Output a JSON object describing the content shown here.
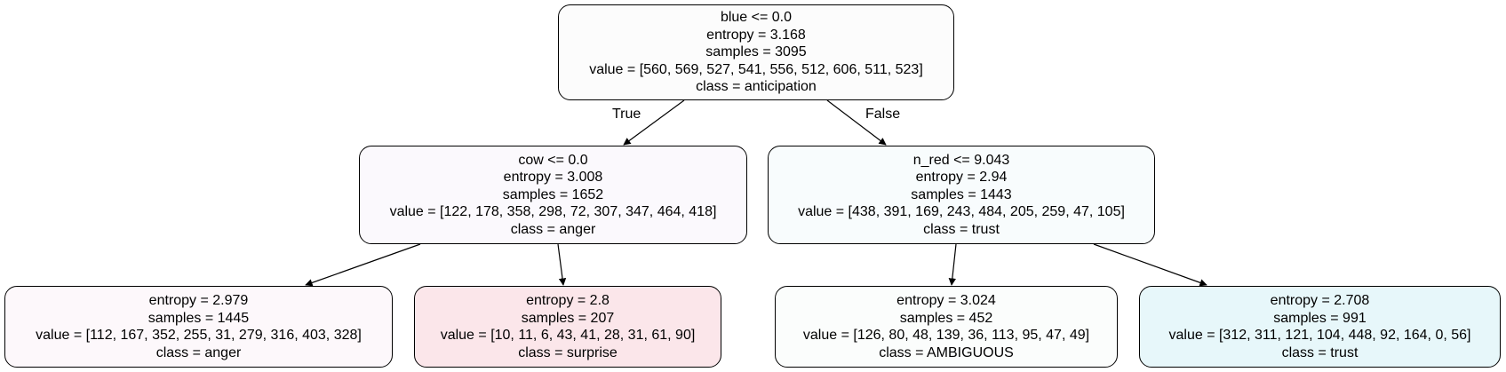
{
  "tree": {
    "root": {
      "lines": [
        "blue <= 0.0",
        "entropy = 3.168",
        "samples = 3095",
        "value = [560, 569, 527, 541, 556, 512, 606, 511, 523]",
        "class = anticipation"
      ],
      "fill": "#fcfcfc"
    },
    "left": {
      "lines": [
        "cow <= 0.0",
        "entropy = 3.008",
        "samples = 1652",
        "value = [122, 178, 358, 298, 72, 307, 347, 464, 418]",
        "class = anger"
      ],
      "fill": "#fbf9fd"
    },
    "right": {
      "lines": [
        "n_red <= 9.043",
        "entropy = 2.94",
        "samples = 1443",
        "value = [438, 391, 169, 243, 484, 205, 259, 47, 105]",
        "class = trust"
      ],
      "fill": "#f8fcfd"
    },
    "leaf_ll": {
      "lines": [
        "entropy = 2.979",
        "samples = 1445",
        "value = [112, 167, 352, 255, 31, 279, 316, 403, 328]",
        "class = anger"
      ],
      "fill": "#fdf8fb"
    },
    "leaf_lr": {
      "lines": [
        "entropy = 2.8",
        "samples = 207",
        "value = [10, 11, 6, 43, 41, 28, 31, 61, 90]",
        "class = surprise"
      ],
      "fill": "#fbe6ea"
    },
    "leaf_rl": {
      "lines": [
        "entropy = 3.024",
        "samples = 452",
        "value = [126, 80, 48, 139, 36, 113, 95, 47, 49]",
        "class = AMBIGUOUS"
      ],
      "fill": "#fbfdfc"
    },
    "leaf_rr": {
      "lines": [
        "entropy = 2.708",
        "samples = 991",
        "value = [312, 311, 121, 104, 448, 92, 164, 0, 56]",
        "class = trust"
      ],
      "fill": "#e7f7fa"
    }
  },
  "edge_labels": {
    "true": "True",
    "false": "False"
  }
}
